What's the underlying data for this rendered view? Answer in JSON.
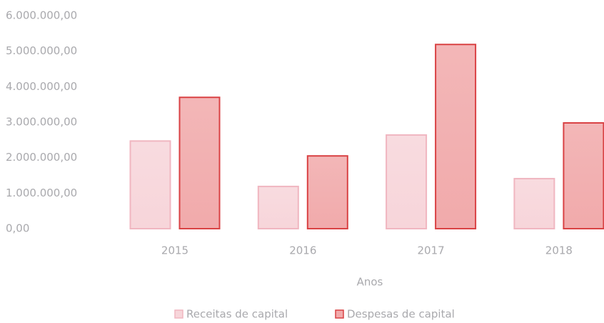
{
  "chart_data": {
    "type": "bar",
    "categories": [
      "2015",
      "2016",
      "2017",
      "2018"
    ],
    "x_label": "Anos",
    "series": [
      {
        "name": "Receitas de capital",
        "color": "#f7d5da",
        "edge": "#f0b6c0",
        "values": [
          2470000,
          1190000,
          2640000,
          1410000
        ]
      },
      {
        "name": "Despesas de capital",
        "color": "#f1aaab",
        "edge": "#d94244",
        "values": [
          3700000,
          2050000,
          5190000,
          2980000
        ]
      }
    ],
    "ylim": [
      0,
      6000000
    ],
    "yticks": [
      {
        "value": 0,
        "label": "0,00"
      },
      {
        "value": 1000000,
        "label": "1.000.000,00"
      },
      {
        "value": 2000000,
        "label": "2.000.000,00"
      },
      {
        "value": 3000000,
        "label": "3.000.000,00"
      },
      {
        "value": 4000000,
        "label": "4.000.000,00"
      },
      {
        "value": 5000000,
        "label": "5.000.000,00"
      },
      {
        "value": 6000000,
        "label": "6.000.000,00"
      }
    ],
    "legend": "bottom"
  }
}
